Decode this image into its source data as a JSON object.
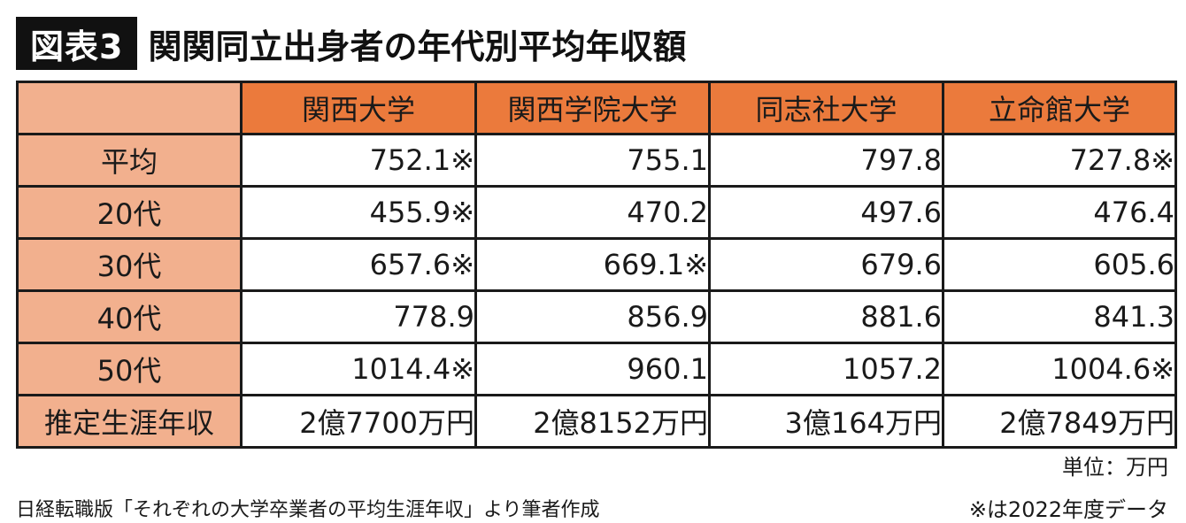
{
  "badge": "図表3",
  "title": "関関同立出身者の年代別平均年収額",
  "unit": "単位：万円",
  "source": "日経転職版「それぞれの大学卒業者の平均生涯年収」より筆者作成",
  "note": "※は2022年度データ",
  "colors": {
    "header": "#eb7a3c",
    "row_header": "#f2b08e",
    "badge_bg": "#111111"
  },
  "chart_data": {
    "type": "table",
    "title": "関関同立出身者の年代別平均年収額",
    "columns": [
      "関西大学",
      "関西学院大学",
      "同志社大学",
      "立命館大学"
    ],
    "rows": [
      {
        "label": "平均",
        "cells": [
          "752.1※",
          "755.1",
          "797.8",
          "727.8※"
        ]
      },
      {
        "label": "20代",
        "cells": [
          "455.9※",
          "470.2",
          "497.6",
          "476.4"
        ]
      },
      {
        "label": "30代",
        "cells": [
          "657.6※",
          "669.1※",
          "679.6",
          "605.6"
        ]
      },
      {
        "label": "40代",
        "cells": [
          "778.9",
          "856.9",
          "881.6",
          "841.3"
        ]
      },
      {
        "label": "50代",
        "cells": [
          "1014.4※",
          "960.1",
          "1057.2",
          "1004.6※"
        ]
      },
      {
        "label": "推定生涯年収",
        "cells": [
          "2億7700万円",
          "2億8152万円",
          "3億164万円",
          "2億7849万円"
        ]
      }
    ],
    "unit": "万円"
  }
}
